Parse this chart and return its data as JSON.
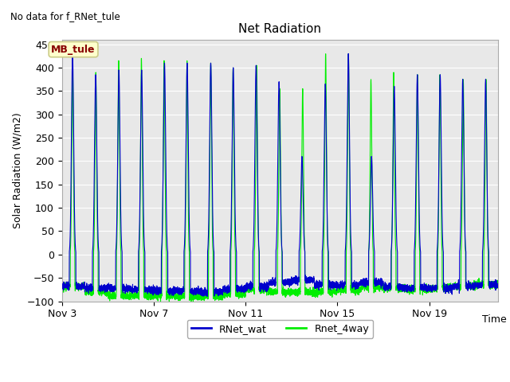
{
  "title": "Net Radiation",
  "subtitle": "No data for f_RNet_tule",
  "xlabel": "Time",
  "ylabel": "Solar Radiation (W/m2)",
  "ylim": [
    -100,
    460
  ],
  "yticks": [
    -100,
    -50,
    0,
    50,
    100,
    150,
    200,
    250,
    300,
    350,
    400,
    450
  ],
  "xtick_labels": [
    "Nov 3",
    "Nov 7",
    "Nov 11",
    "Nov 15",
    "Nov 19"
  ],
  "xtick_positions": [
    0,
    4,
    8,
    12,
    16
  ],
  "legend_entries": [
    "RNet_wat",
    "Rnet_4way"
  ],
  "line_colors_blue": "#0000cc",
  "line_colors_green": "#00ee00",
  "line_width": 0.8,
  "fig_bg_color": "#ffffff",
  "axes_bg_color": "#e8e8e8",
  "grid_color": "#ffffff",
  "annotation_text": "MB_tule",
  "annotation_box_color": "#ffffcc",
  "annotation_box_edge": "#cccc88",
  "annotation_text_color": "#880000",
  "n_days": 19,
  "n_pts_per_day": 288,
  "peak_heights_blue": [
    430,
    385,
    395,
    395,
    410,
    410,
    410,
    400,
    405,
    370,
    210,
    365,
    430,
    210,
    360,
    385,
    385,
    375,
    375
  ],
  "peak_heights_green": [
    425,
    390,
    415,
    420,
    415,
    415,
    410,
    400,
    405,
    355,
    355,
    430,
    430,
    375,
    390,
    385,
    385,
    375,
    375
  ],
  "night_vals_blue": [
    -68,
    -72,
    -72,
    -75,
    -78,
    -78,
    -80,
    -75,
    -68,
    -60,
    -55,
    -65,
    -65,
    -60,
    -70,
    -72,
    -72,
    -68,
    -65
  ],
  "night_vals_green": [
    -68,
    -80,
    -88,
    -88,
    -88,
    -90,
    -90,
    -85,
    -75,
    -80,
    -80,
    -80,
    -75,
    -70,
    -72,
    -75,
    -72,
    -68,
    -65
  ]
}
